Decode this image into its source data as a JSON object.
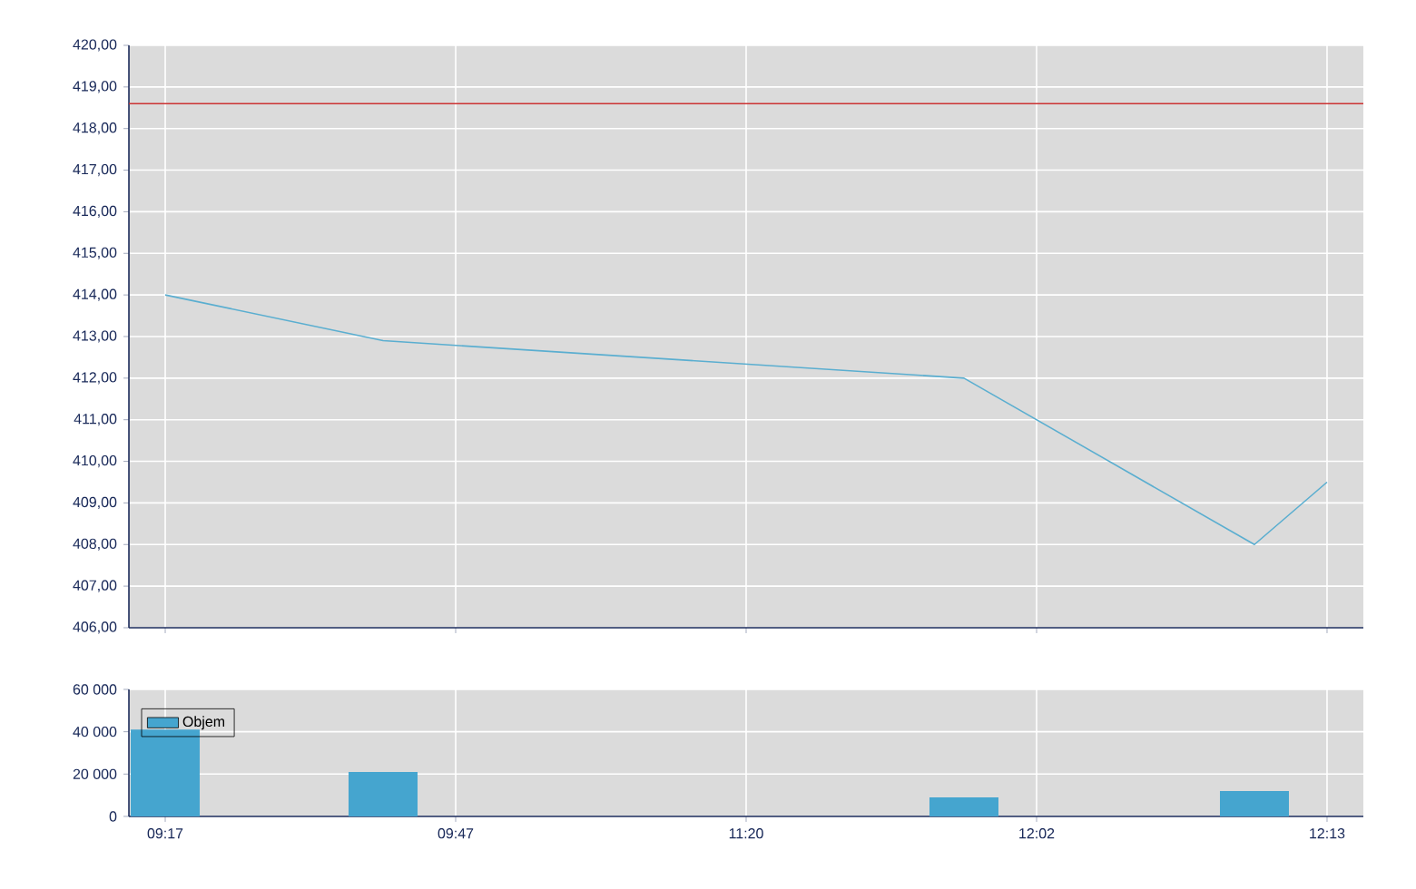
{
  "chart_data": [
    {
      "type": "line",
      "categories": [
        null,
        null,
        null,
        null,
        null,
        null,
        null,
        null,
        null,
        null,
        null,
        null,
        null,
        null,
        null,
        null,
        null
      ],
      "series": [
        {
          "color": "#5aaed0",
          "values": [
            414.0,
            null,
            null,
            412.9,
            null,
            null,
            null,
            null,
            null,
            null,
            null,
            412.0,
            null,
            null,
            null,
            408.0,
            409.5
          ]
        }
      ],
      "ylim": [
        406,
        420
      ],
      "yticks": [
        {
          "value": 406,
          "label": "406,00"
        },
        {
          "value": 407,
          "label": "407,00"
        },
        {
          "value": 408,
          "label": "408,00"
        },
        {
          "value": 409,
          "label": "409,00"
        },
        {
          "value": 410,
          "label": "410,00"
        },
        {
          "value": 411,
          "label": "411,00"
        },
        {
          "value": 412,
          "label": "412,00"
        },
        {
          "value": 413,
          "label": "413,00"
        },
        {
          "value": 414,
          "label": "414,00"
        },
        {
          "value": 415,
          "label": "415,00"
        },
        {
          "value": 416,
          "label": "416,00"
        },
        {
          "value": 417,
          "label": "417,00"
        },
        {
          "value": 418,
          "label": "418,00"
        },
        {
          "value": 419,
          "label": "419,00"
        },
        {
          "value": 420,
          "label": "420,00"
        }
      ],
      "ref_lines": [
        {
          "axis": "y",
          "value": 418.6,
          "color": "#cc3333"
        }
      ],
      "grid": true,
      "tick_labels": "y",
      "marker": "none",
      "line_style": "solid"
    },
    {
      "type": "bar",
      "categories": [
        "09:17",
        null,
        null,
        null,
        "09:47",
        null,
        null,
        null,
        "11:20",
        null,
        null,
        null,
        "12:02",
        null,
        null,
        null,
        "12:13"
      ],
      "series": [
        {
          "name": "Objem",
          "color": "#45a5cf",
          "values": [
            41000,
            null,
            null,
            21000,
            null,
            null,
            null,
            null,
            null,
            null,
            null,
            9000,
            null,
            null,
            null,
            12000,
            null
          ]
        }
      ],
      "ylim": [
        0,
        60000
      ],
      "yticks": [
        0,
        {
          "value": 20000,
          "label": "20 000"
        },
        {
          "value": 40000,
          "label": "40 000"
        },
        {
          "value": 60000,
          "label": "60 000"
        }
      ],
      "grid": true,
      "legend": "top left"
    }
  ]
}
